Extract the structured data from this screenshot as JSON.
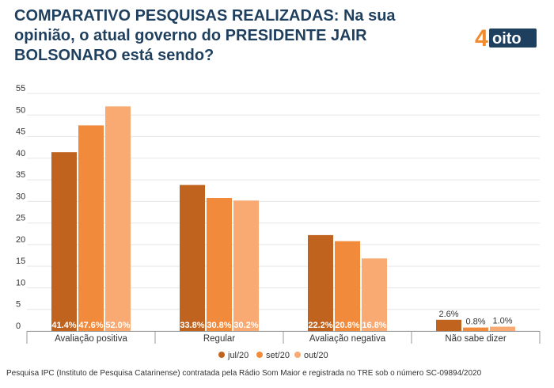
{
  "header": {
    "title": "COMPARATIVO PESQUISAS REALIZADAS: Na sua opinião, o atual governo do PRESIDENTE JAIR BOLSONARO está sendo?"
  },
  "logo": {
    "text_main": "4",
    "text_tail": "oito",
    "color": "#f28a2e"
  },
  "footer": {
    "source": "Pesquisa IPC (Instituto de Pesquisa Catarinense) contratada pela Rádio Som Maior e registrada no TRE sob o número SC-09894/2020"
  },
  "colors": {
    "jul20": "#c0631f",
    "set20": "#f28a3c",
    "out20": "#f8aa72",
    "grid": "#e6e6e6",
    "axis": "#999999"
  },
  "chart_data": {
    "type": "bar",
    "categories": [
      "Avaliação positiva",
      "Regular",
      "Avaliação negativa",
      "Não sabe dizer"
    ],
    "series": [
      {
        "name": "jul/20",
        "values": [
          41.4,
          33.8,
          22.2,
          2.6
        ],
        "labels": [
          "41.4%",
          "33.8%",
          "22.2%",
          "2.6%"
        ]
      },
      {
        "name": "set/20",
        "values": [
          47.6,
          30.8,
          20.8,
          0.8
        ],
        "labels": [
          "47.6%",
          "30.8%",
          "20.8%",
          "0.8%"
        ]
      },
      {
        "name": "out/20",
        "values": [
          52.0,
          30.2,
          16.8,
          1.0
        ],
        "labels": [
          "52.0%",
          "30.2%",
          "16.8%",
          "1.0%"
        ]
      }
    ],
    "yticks": [
      0,
      5,
      10,
      15,
      20,
      25,
      30,
      35,
      40,
      45,
      50,
      55
    ],
    "ylim": [
      0,
      55
    ],
    "grid": true,
    "legend_position": "bottom"
  }
}
